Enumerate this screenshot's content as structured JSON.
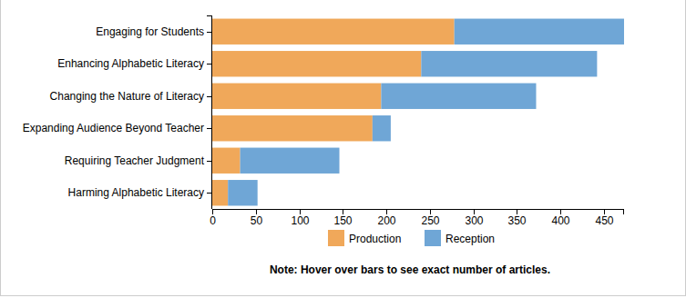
{
  "chart_data": {
    "type": "bar",
    "orientation": "horizontal",
    "stacked": true,
    "categories": [
      "Engaging for Students",
      "Enhancing Alphabetic Literacy",
      "Changing the Nature of Literacy",
      "Expanding Audience Beyond Teacher",
      "Requiring Teacher Judgment",
      "Harming Alphabetic Literacy"
    ],
    "series": [
      {
        "name": "Production",
        "color": "#f0a85a",
        "values": [
          278,
          240,
          194,
          184,
          32,
          18
        ]
      },
      {
        "name": "Reception",
        "color": "#6fa6d6",
        "values": [
          195,
          202,
          178,
          21,
          114,
          34
        ]
      }
    ],
    "xlim": [
      0,
      473
    ],
    "xticks": [
      0,
      50,
      100,
      150,
      200,
      250,
      300,
      350,
      400,
      450
    ],
    "legend": "bottom",
    "annotations": [
      "Note: Hover over bars to see exact number of articles."
    ]
  }
}
